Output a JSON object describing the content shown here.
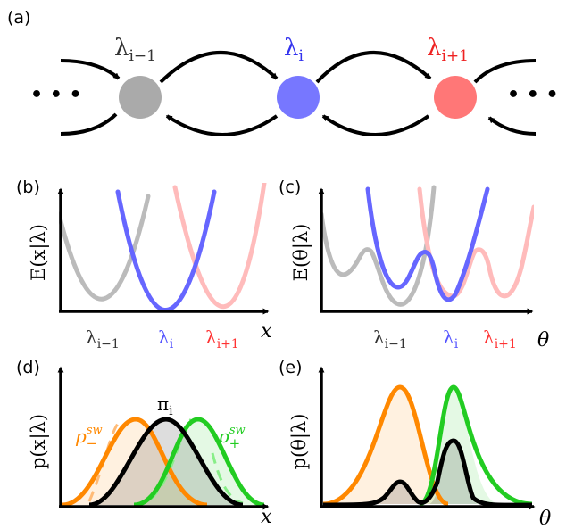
{
  "panels": {
    "a": "(a)",
    "b": "(b)",
    "c": "(c)",
    "d": "(d)",
    "e": "(e)"
  },
  "chain": {
    "ellipsis_left": "• • •",
    "ellipsis_right": "• • •",
    "nodes": [
      {
        "label_base": "λ",
        "label_sub": "i−1",
        "color": "#aaaaaa"
      },
      {
        "label_base": "λ",
        "label_sub": "i",
        "color": "#7777ff"
      },
      {
        "label_base": "λ",
        "label_sub": "i+1",
        "color": "#ff7777"
      }
    ]
  },
  "panel_b": {
    "ylabel": "E(x|λ)",
    "xlabel": "x",
    "ticks": [
      {
        "base": "λ",
        "sub": "i−1",
        "color": "#333333"
      },
      {
        "base": "λ",
        "sub": "i",
        "color": "#5555ff"
      },
      {
        "base": "λ",
        "sub": "i+1",
        "color": "#ff3333"
      }
    ]
  },
  "panel_c": {
    "ylabel": "E(θ|λ)",
    "xlabel": "θ",
    "ticks": [
      {
        "base": "λ",
        "sub": "i−1",
        "color": "#333333"
      },
      {
        "base": "λ",
        "sub": "i",
        "color": "#5555ff"
      },
      {
        "base": "λ",
        "sub": "i+1",
        "color": "#ff3333"
      }
    ]
  },
  "panel_d": {
    "ylabel": "p(x|λ)",
    "xlabel": "x",
    "pi_base": "π",
    "pi_sub": "i",
    "pminus_base": "p",
    "pminus_sub": "−",
    "pminus_sup": "sw",
    "pplus_base": "p",
    "pplus_sub": "+",
    "pplus_sup": "sw"
  },
  "panel_e": {
    "ylabel": "p(θ|λ)",
    "xlabel": "θ"
  },
  "colors": {
    "gray": "#bbbbbb",
    "blue": "#6666ff",
    "pink": "#ffbbbb",
    "orange": "#ff8800",
    "green": "#22cc22",
    "black": "#000000"
  }
}
